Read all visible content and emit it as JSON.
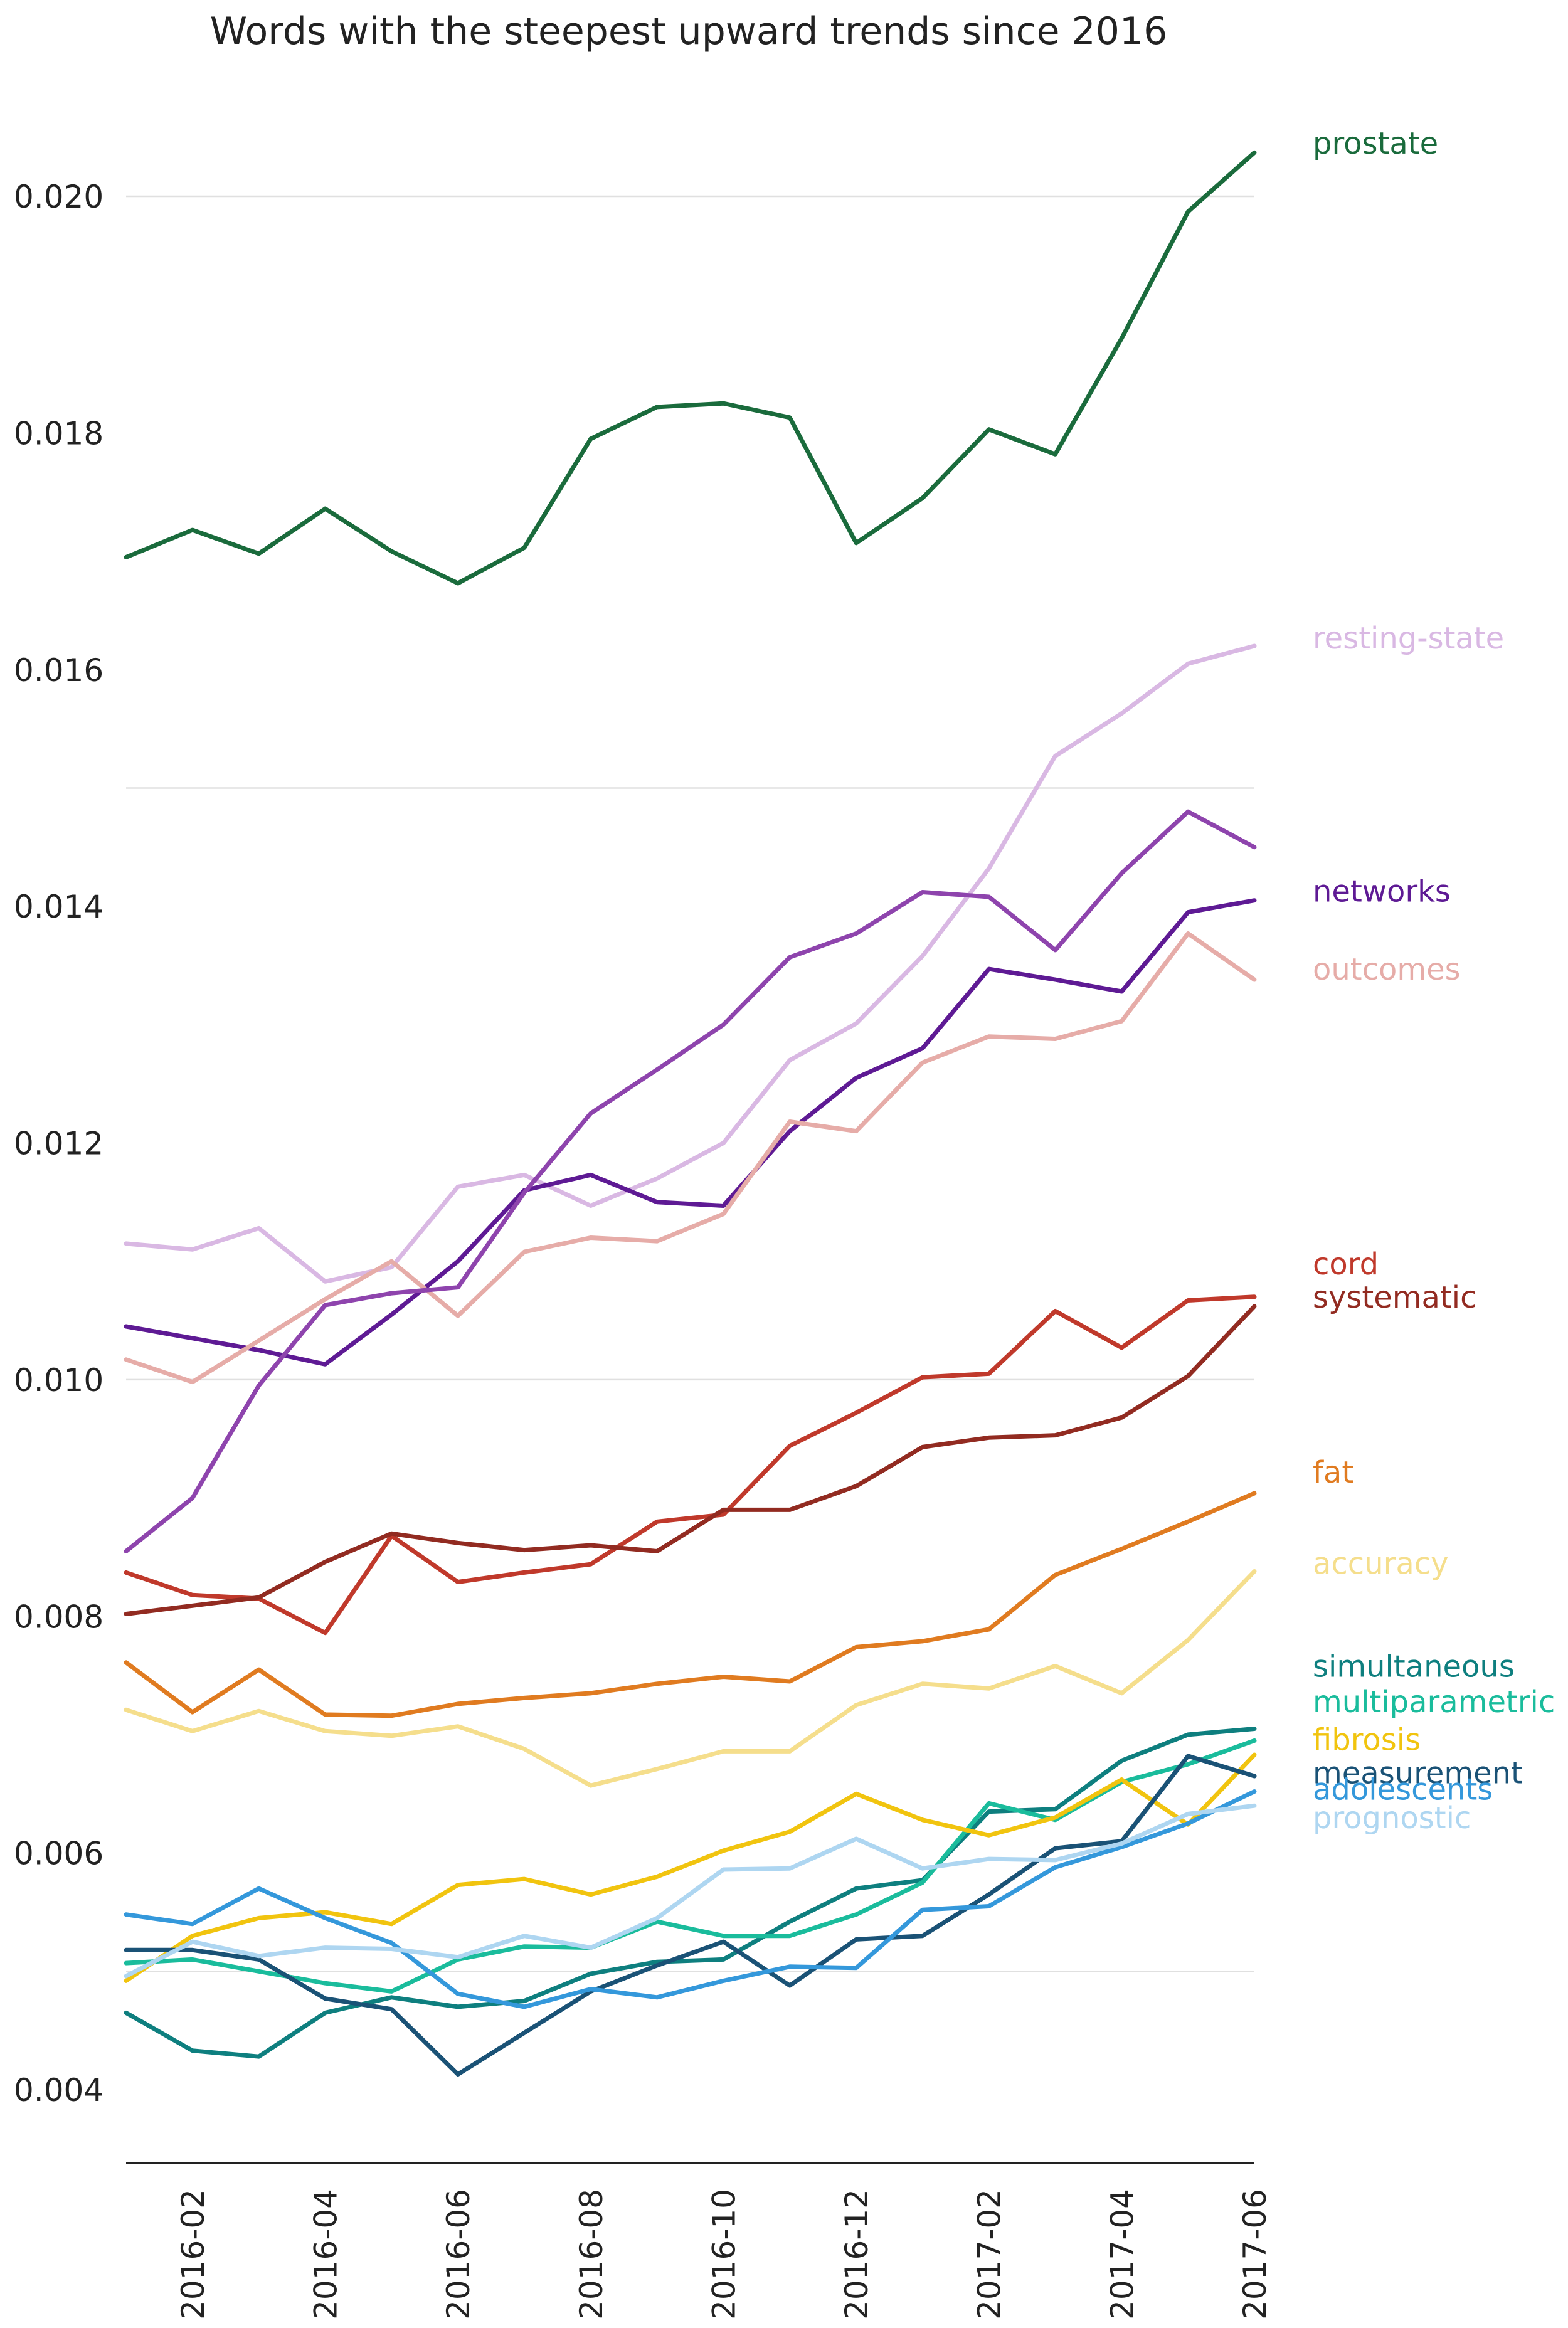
{
  "chart_data": {
    "type": "line",
    "title": "Words with the steepest upward trends since 2016",
    "xlabel": "",
    "ylabel": "",
    "ylim": [
      0.0033,
      0.0211
    ],
    "yticks": [
      0.004,
      0.006,
      0.008,
      0.01,
      0.012,
      0.014,
      0.016,
      0.018,
      0.02
    ],
    "ytick_labels": [
      "0.004",
      "0.006",
      "0.008",
      "0.010",
      "0.012",
      "0.014",
      "0.016",
      "0.018",
      "0.020"
    ],
    "gridlines": [
      0.005,
      0.01,
      0.015,
      0.02
    ],
    "x": [
      "2016-01",
      "2016-02",
      "2016-03",
      "2016-04",
      "2016-05",
      "2016-06",
      "2016-07",
      "2016-08",
      "2016-09",
      "2016-10",
      "2016-11",
      "2016-12",
      "2017-01",
      "2017-02",
      "2017-03",
      "2017-04",
      "2017-05",
      "2017-06"
    ],
    "xticks": [
      "2016-02",
      "2016-04",
      "2016-06",
      "2016-08",
      "2016-10",
      "2016-12",
      "2017-02",
      "2017-04",
      "2017-06"
    ],
    "series": [
      {
        "name": "prostate",
        "color": "#1a6b3c",
        "label_y": 0.02045,
        "values": [
          0.01695,
          0.01718,
          0.01698,
          0.01736,
          0.017,
          0.01673,
          0.01703,
          0.01795,
          0.01822,
          0.01825,
          0.01813,
          0.01707,
          0.01745,
          0.01803,
          0.01782,
          0.0188,
          0.01987,
          0.02037
        ]
      },
      {
        "name": "resting-state",
        "color": "#d9b8e3",
        "label_y": 0.01627,
        "values": [
          0.01115,
          0.0111,
          0.01128,
          0.01083,
          0.01095,
          0.01163,
          0.01173,
          0.01147,
          0.0117,
          0.012,
          0.0127,
          0.01301,
          0.01358,
          0.01432,
          0.01527,
          0.01563,
          0.01605,
          0.0162
        ]
      },
      {
        "name": "networks",
        "color": "#5e1a94",
        "label_y": 0.01413,
        "values": [
          0.01045,
          0.01035,
          0.01025,
          0.01013,
          0.01055,
          0.011,
          0.0116,
          0.01173,
          0.0115,
          0.01147,
          0.0121,
          0.01255,
          0.0128,
          0.01347,
          0.01338,
          0.01328,
          0.01395,
          0.01405
        ]
      },
      {
        "name": "outcomes",
        "color": "#e6aca8",
        "label_y": 0.01347,
        "values": [
          0.01017,
          0.00998,
          0.01033,
          0.01068,
          0.011,
          0.01054,
          0.01108,
          0.0112,
          0.01117,
          0.0114,
          0.01218,
          0.0121,
          0.01268,
          0.0129,
          0.01288,
          0.01303,
          0.01377,
          0.01338
        ]
      },
      {
        "name": "",
        "color": "#8e44ad",
        "label_y": null,
        "values": [
          0.00855,
          0.009,
          0.00995,
          0.01063,
          0.01073,
          0.01078,
          0.01158,
          0.01225,
          0.01262,
          0.013,
          0.01357,
          0.01377,
          0.01412,
          0.01408,
          0.01363,
          0.01428,
          0.0148,
          0.0145
        ]
      },
      {
        "name": "cord",
        "color": "#c0392b",
        "label_y": 0.01098,
        "values": [
          0.00837,
          0.00818,
          0.00815,
          0.00786,
          0.00868,
          0.00829,
          0.00837,
          0.00844,
          0.0088,
          0.00886,
          0.00944,
          0.00972,
          0.01002,
          0.01005,
          0.01058,
          0.01027,
          0.01067,
          0.0107
        ]
      },
      {
        "name": "systematic",
        "color": "#922b21",
        "label_y": 0.0107,
        "values": [
          0.00802,
          0.00809,
          0.00816,
          0.00846,
          0.0087,
          0.00862,
          0.00856,
          0.0086,
          0.00855,
          0.0089,
          0.0089,
          0.0091,
          0.00943,
          0.00951,
          0.00953,
          0.00968,
          0.01003,
          0.01062
        ]
      },
      {
        "name": "fat",
        "color": "#e07b20",
        "label_y": 0.00922,
        "values": [
          0.00761,
          0.00719,
          0.00755,
          0.00717,
          0.00716,
          0.00726,
          0.00731,
          0.00735,
          0.00743,
          0.00749,
          0.00745,
          0.00774,
          0.00779,
          0.00789,
          0.00835,
          0.00857,
          0.0088,
          0.00904
        ]
      },
      {
        "name": "accuracy",
        "color": "#f5de8c",
        "label_y": 0.00845,
        "values": [
          0.00721,
          0.00703,
          0.0072,
          0.00703,
          0.00699,
          0.00707,
          0.00688,
          0.00657,
          0.00671,
          0.00686,
          0.00686,
          0.00725,
          0.00743,
          0.00739,
          0.00758,
          0.00735,
          0.0078,
          0.00838
        ]
      },
      {
        "name": "simultaneous",
        "color": "#0e7f7f",
        "label_y": 0.00758,
        "values": [
          0.00465,
          0.00433,
          0.00428,
          0.00465,
          0.00478,
          0.0047,
          0.00475,
          0.00498,
          0.00508,
          0.0051,
          0.00542,
          0.0057,
          0.00577,
          0.00635,
          0.00637,
          0.00678,
          0.007,
          0.00705
        ]
      },
      {
        "name": "multiparametric",
        "color": "#1abc9c",
        "label_y": 0.00728,
        "values": [
          0.00507,
          0.0051,
          0.005,
          0.0049,
          0.00483,
          0.0051,
          0.00521,
          0.0052,
          0.00542,
          0.0053,
          0.0053,
          0.00548,
          0.00575,
          0.00642,
          0.00628,
          0.0066,
          0.00675,
          0.00695
        ]
      },
      {
        "name": "fibrosis",
        "color": "#f1c40f",
        "label_y": 0.00696,
        "values": [
          0.00492,
          0.0053,
          0.00545,
          0.0055,
          0.0054,
          0.00573,
          0.00578,
          0.00565,
          0.0058,
          0.00602,
          0.00618,
          0.0065,
          0.00628,
          0.00615,
          0.0063,
          0.00662,
          0.00624,
          0.00683
        ]
      },
      {
        "name": "measurement",
        "color": "#1a5276",
        "label_y": 0.00668,
        "values": [
          0.00518,
          0.00518,
          0.0051,
          0.00477,
          0.00468,
          0.00413,
          0.00448,
          0.00483,
          0.00505,
          0.00525,
          0.00488,
          0.00527,
          0.0053,
          0.00565,
          0.00604,
          0.0061,
          0.00682,
          0.00665
        ]
      },
      {
        "name": "adolescents",
        "color": "#3498db",
        "label_y": 0.00654,
        "values": [
          0.00548,
          0.0054,
          0.0057,
          0.00545,
          0.00524,
          0.00481,
          0.0047,
          0.00485,
          0.00478,
          0.00492,
          0.00504,
          0.00503,
          0.00552,
          0.00555,
          0.00588,
          0.00605,
          0.00625,
          0.00652
        ]
      },
      {
        "name": "prognostic",
        "color": "#aed6f1",
        "label_y": 0.0063,
        "values": [
          0.00496,
          0.00525,
          0.00513,
          0.0052,
          0.00519,
          0.00512,
          0.0053,
          0.0052,
          0.00545,
          0.00586,
          0.00587,
          0.00612,
          0.00587,
          0.00595,
          0.00594,
          0.00608,
          0.00633,
          0.0064
        ]
      }
    ]
  }
}
